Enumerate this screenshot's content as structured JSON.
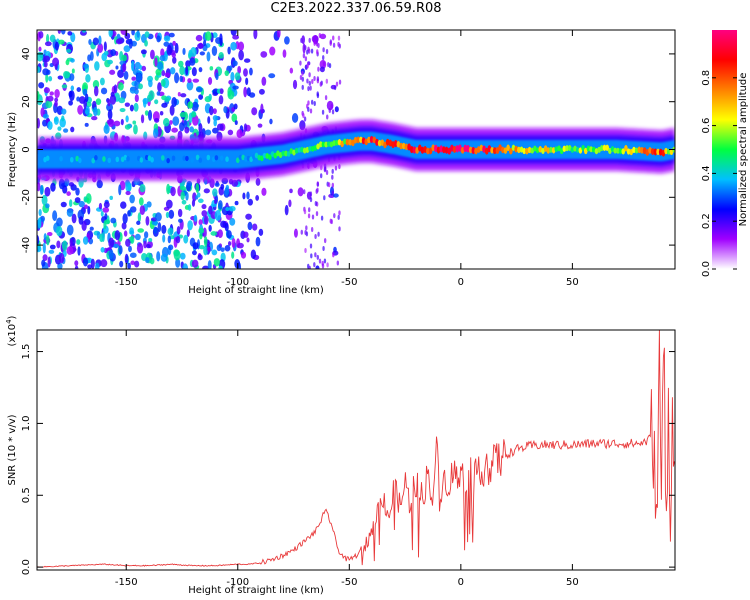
{
  "page_title": "C2E3.2022.337.06.59.R08",
  "chart_data": [
    {
      "type": "heatmap",
      "xlabel": "Height of straight line (km)",
      "ylabel": "Frequency (Hz)",
      "xlim": [
        -190,
        96
      ],
      "ylim": [
        -50,
        50
      ],
      "x_ticks": [
        -150,
        -100,
        -50,
        0,
        50
      ],
      "y_ticks": [
        -40,
        -20,
        0,
        20,
        40
      ],
      "ridge": {
        "x": [
          -190,
          -150,
          -110,
          -100,
          -90,
          -80,
          -70,
          -60,
          -50,
          -45,
          -40,
          -30,
          -20,
          -10,
          0,
          10,
          30,
          50,
          70,
          90,
          96
        ],
        "freq": [
          -4,
          -4,
          -4,
          -4,
          -3,
          -2,
          0,
          2,
          3,
          3.5,
          3.5,
          2,
          0,
          0,
          0,
          0,
          0,
          0,
          0,
          -1,
          0
        ],
        "amplitude": [
          0.4,
          0.4,
          0.35,
          0.4,
          0.45,
          0.5,
          0.55,
          0.6,
          0.7,
          0.85,
          0.9,
          0.85,
          0.9,
          1.0,
          1.0,
          0.95,
          0.7,
          0.6,
          0.6,
          0.85,
          0.5
        ]
      },
      "colorbar": {
        "label": "Normalized spectral amplitude",
        "range": [
          0,
          1
        ],
        "ticks": [
          0.0,
          0.2,
          0.4,
          0.6,
          0.8
        ],
        "colors": [
          "#ffffff",
          "#a000ff",
          "#0000ff",
          "#00c0ff",
          "#00ff40",
          "#ffff00",
          "#ff8000",
          "#ff0000",
          "#ff0080"
        ]
      }
    },
    {
      "type": "line",
      "xlabel": "Height of straight line (km)",
      "ylabel": "SNR (10 * v/v)",
      "scale_label": "(x10",
      "scale_exp": "4",
      "scale_close": ")",
      "xlim": [
        -190,
        96
      ],
      "ylim": [
        -0.02,
        1.65
      ],
      "x_ticks": [
        -150,
        -100,
        -50,
        0,
        50
      ],
      "y_ticks": [
        0.0,
        0.5,
        1.0,
        1.5
      ],
      "y_tick_labels": [
        "0.0",
        "0.5",
        "1.0",
        "1.5"
      ],
      "line_color": "#e8393a",
      "series": [
        {
          "x": [
            -190,
            -175,
            -160,
            -150,
            -140,
            -130,
            -120,
            -110,
            -100,
            -95,
            -90,
            -85,
            -80,
            -75,
            -70,
            -65,
            -62,
            -60,
            -58,
            -55,
            -52,
            -50,
            -47,
            -44,
            -40,
            -37,
            -35,
            -32,
            -30,
            -27,
            -25,
            -23,
            -20,
            -17,
            -15,
            -13,
            -11,
            -9,
            -7,
            -5,
            -3,
            -1,
            0,
            2,
            4,
            6,
            8,
            10,
            12,
            14,
            16,
            18,
            20,
            25,
            30,
            35,
            40,
            50,
            60,
            65,
            70,
            75,
            80,
            84,
            86,
            88,
            89,
            90,
            91,
            92,
            93,
            94,
            95
          ],
          "y": [
            0.0,
            0.01,
            0.02,
            0.01,
            0.01,
            0.02,
            0.01,
            0.01,
            0.02,
            0.02,
            0.03,
            0.05,
            0.08,
            0.12,
            0.18,
            0.25,
            0.35,
            0.38,
            0.3,
            0.12,
            0.06,
            0.05,
            0.08,
            0.12,
            0.25,
            0.4,
            0.5,
            0.35,
            0.55,
            0.42,
            0.6,
            0.45,
            0.6,
            0.48,
            0.65,
            0.5,
            0.8,
            0.55,
            0.62,
            0.58,
            0.7,
            0.56,
            0.65,
            0.62,
            0.7,
            0.6,
            0.72,
            0.67,
            0.75,
            0.7,
            0.76,
            0.74,
            0.78,
            0.82,
            0.84,
            0.85,
            0.85,
            0.85,
            0.86,
            0.86,
            0.86,
            0.86,
            0.86,
            0.88,
            0.95,
            0.3,
            1.4,
            0.5,
            1.6,
            0.15,
            1.3,
            0.2,
            1.1
          ]
        }
      ]
    }
  ]
}
